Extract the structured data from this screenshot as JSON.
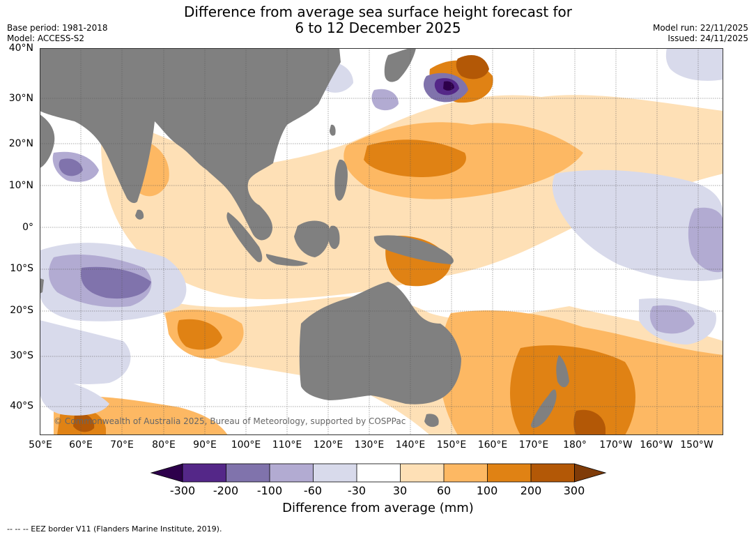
{
  "title": {
    "line1": "Difference from average sea surface height forecast for",
    "line2": "6 to 12 December 2025"
  },
  "meta": {
    "base_period": "Base period: 1981-2018",
    "model": "Model: ACCESS-S2",
    "model_run": "Model run: 22/11/2025",
    "issued": "Issued: 24/11/2025"
  },
  "map": {
    "latitude_labels": [
      "40°N",
      "30°N",
      "20°N",
      "10°N",
      "0°",
      "10°S",
      "20°S",
      "30°S",
      "40°S"
    ],
    "longitude_labels": [
      "50°E",
      "60°E",
      "70°E",
      "80°E",
      "90°E",
      "100°E",
      "110°E",
      "120°E",
      "130°E",
      "140°E",
      "150°E",
      "160°E",
      "170°E",
      "180°",
      "170°W",
      "160°W",
      "150°W"
    ],
    "copyright": "© Commonwealth of Australia 2025, Bureau of Meteorology, supported by COSPPac"
  },
  "colorbar": {
    "title": "Difference from average (mm)",
    "tick_labels": [
      "-300",
      "-200",
      "-100",
      "-60",
      "-30",
      "30",
      "60",
      "100",
      "200",
      "300"
    ],
    "colors": [
      "#2d004b",
      "#542788",
      "#8073ac",
      "#b2abd2",
      "#d8daeb",
      "#ffffff",
      "#fee0b6",
      "#fdb863",
      "#e08214",
      "#b35806",
      "#7f3b08"
    ]
  },
  "colors": {
    "land": "#808080",
    "grid": "#555555"
  },
  "footnote": "--  --  -- EEZ border V11 (Flanders Marine Institute, 2019)."
}
